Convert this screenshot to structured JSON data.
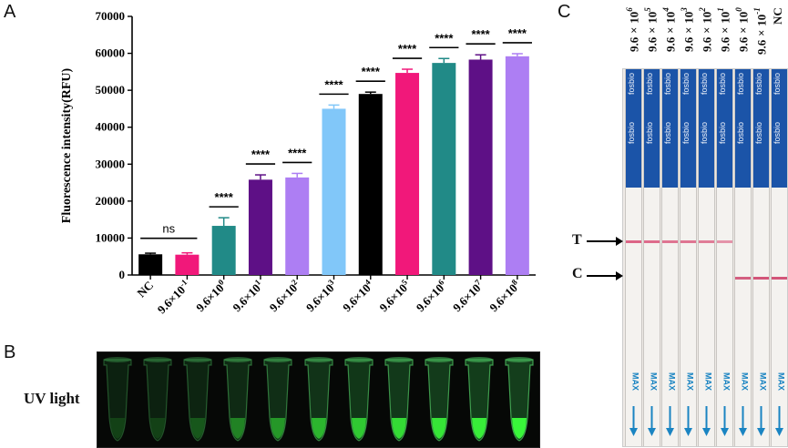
{
  "panels": {
    "a": "A",
    "b": "B",
    "c": "C"
  },
  "chart_data": {
    "type": "bar",
    "ylabel": "Fluorescence intensity(RFU)",
    "xlabel": "",
    "ylim": [
      0,
      70000
    ],
    "yticks": [
      0,
      10000,
      20000,
      30000,
      40000,
      50000,
      60000,
      70000
    ],
    "categories": [
      {
        "base": "NC",
        "exp": ""
      },
      {
        "base": "9.6×10",
        "exp": "-1"
      },
      {
        "base": "9.6×10",
        "exp": "0"
      },
      {
        "base": "9.6×10",
        "exp": "1"
      },
      {
        "base": "9.6×10",
        "exp": "2"
      },
      {
        "base": "9.6×10",
        "exp": "3"
      },
      {
        "base": "9.6×10",
        "exp": "4"
      },
      {
        "base": "9.6×10",
        "exp": "5"
      },
      {
        "base": "9.6×10",
        "exp": "6"
      },
      {
        "base": "9.6×10",
        "exp": "7"
      },
      {
        "base": "9.6×10",
        "exp": "8"
      }
    ],
    "values": [
      5600,
      5500,
      13300,
      25800,
      26400,
      45000,
      49000,
      54700,
      57400,
      58300,
      59200
    ],
    "errors": [
      300,
      500,
      2200,
      1300,
      1100,
      1000,
      500,
      1000,
      1200,
      1300,
      700
    ],
    "colors": [
      "#000000",
      "#f1187a",
      "#218a87",
      "#5e1086",
      "#ad7ef3",
      "#81c7f9",
      "#000000",
      "#f1187a",
      "#218a87",
      "#5e1086",
      "#ad7ef3"
    ],
    "significance": [
      {
        "from": 0,
        "to": 1,
        "label": "ns"
      },
      {
        "from": 2,
        "to": 2,
        "label": "****"
      },
      {
        "from": 3,
        "to": 3,
        "label": "****"
      },
      {
        "from": 4,
        "to": 4,
        "label": "****"
      },
      {
        "from": 5,
        "to": 5,
        "label": "****"
      },
      {
        "from": 6,
        "to": 6,
        "label": "****"
      },
      {
        "from": 7,
        "to": 7,
        "label": "****"
      },
      {
        "from": 8,
        "to": 8,
        "label": "****"
      },
      {
        "from": 9,
        "to": 9,
        "label": "****"
      },
      {
        "from": 10,
        "to": 10,
        "label": "****"
      }
    ]
  },
  "uv": {
    "label": "UV light",
    "tube_glow": [
      0.05,
      0.05,
      0.15,
      0.35,
      0.45,
      0.6,
      0.7,
      0.8,
      0.85,
      0.9,
      0.95
    ]
  },
  "strips": {
    "brand": "fosbio",
    "max_text": "MAX",
    "t_label": "T",
    "c_label": "C",
    "items": [
      {
        "base": "9.6×10",
        "exp": "6",
        "t": 0.9,
        "c": 0.0
      },
      {
        "base": "9.6×10",
        "exp": "5",
        "t": 0.85,
        "c": 0.0
      },
      {
        "base": "9.6×10",
        "exp": "4",
        "t": 0.8,
        "c": 0.0
      },
      {
        "base": "9.6×10",
        "exp": "3",
        "t": 0.8,
        "c": 0.0
      },
      {
        "base": "9.6×10",
        "exp": "2",
        "t": 0.75,
        "c": 0.0
      },
      {
        "base": "9.6×10",
        "exp": "1",
        "t": 0.6,
        "c": 0.0
      },
      {
        "base": "9.6×10",
        "exp": "0",
        "t": 0.0,
        "c": 0.8
      },
      {
        "base": "9.6×10",
        "exp": "-1",
        "t": 0.0,
        "c": 0.85
      },
      {
        "base": "NC",
        "exp": "",
        "t": 0.0,
        "c": 0.85
      }
    ]
  }
}
